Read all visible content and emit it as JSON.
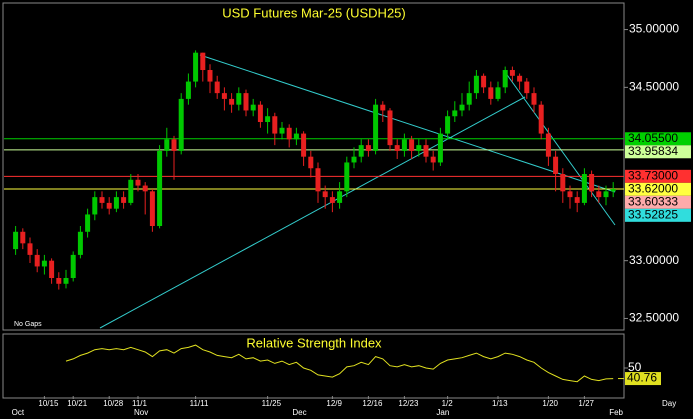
{
  "chart_data": [
    {
      "type": "candlestick",
      "title": "USD Futures Mar-25 (USDH25)",
      "annotation": "No Gaps",
      "x_unit": "Day",
      "categories": [
        null,
        null,
        null,
        null,
        "10/15",
        null,
        null,
        null,
        "10/21",
        null,
        null,
        null,
        null,
        "10/28",
        null,
        null,
        null,
        "11/1",
        null,
        null,
        null,
        null,
        null,
        null,
        null,
        "11/11",
        null,
        null,
        null,
        null,
        null,
        null,
        null,
        null,
        null,
        "11/25",
        null,
        null,
        null,
        null,
        null,
        null,
        null,
        null,
        "12/9",
        null,
        null,
        null,
        null,
        "12/16",
        null,
        null,
        null,
        null,
        "12/23",
        null,
        null,
        null,
        null,
        null,
        "1/2",
        null,
        null,
        null,
        null,
        null,
        null,
        "1/13",
        null,
        null,
        null,
        null,
        null,
        null,
        "1/20",
        null,
        null,
        null,
        null,
        "1/27",
        null,
        null,
        null,
        null
      ],
      "months": [
        "Oct",
        null,
        null,
        null,
        null,
        null,
        null,
        null,
        null,
        null,
        null,
        null,
        null,
        null,
        null,
        null,
        null,
        "Nov",
        null,
        null,
        null,
        null,
        null,
        null,
        null,
        null,
        null,
        null,
        null,
        null,
        null,
        null,
        null,
        null,
        null,
        null,
        null,
        null,
        null,
        "Dec",
        null,
        null,
        null,
        null,
        null,
        null,
        null,
        null,
        null,
        null,
        null,
        null,
        null,
        null,
        null,
        null,
        null,
        null,
        null,
        "Jan",
        null,
        null,
        null,
        null,
        null,
        null,
        null,
        null,
        null,
        null,
        null,
        null,
        null,
        null,
        null,
        null,
        null,
        null,
        null,
        null,
        null,
        null,
        null,
        "Feb"
      ],
      "open": [
        33.1,
        33.25,
        33.15,
        33.05,
        32.95,
        33.0,
        32.85,
        32.8,
        32.85,
        33.05,
        33.25,
        33.4,
        33.55,
        33.5,
        33.45,
        33.55,
        33.5,
        33.7,
        33.65,
        33.6,
        33.3,
        33.95,
        34.05,
        33.95,
        34.4,
        34.55,
        34.8,
        34.65,
        34.55,
        34.45,
        34.4,
        34.35,
        34.45,
        34.3,
        34.35,
        34.2,
        34.25,
        34.1,
        34.15,
        34.05,
        34.1,
        33.9,
        33.8,
        33.6,
        33.55,
        33.5,
        33.6,
        33.85,
        33.9,
        34.0,
        33.95,
        34.35,
        34.3,
        34.0,
        33.95,
        34.05,
        33.95,
        34.0,
        33.9,
        33.85,
        34.1,
        34.25,
        34.3,
        34.35,
        34.45,
        34.6,
        34.5,
        34.4,
        34.5,
        34.65,
        34.6,
        34.55,
        34.45,
        34.35,
        34.1,
        33.9,
        33.75,
        33.6,
        33.55,
        33.5,
        33.75,
        33.6,
        33.55,
        33.6
      ],
      "high": [
        33.3,
        33.28,
        33.2,
        33.1,
        33.05,
        33.02,
        32.9,
        32.92,
        33.08,
        33.3,
        33.45,
        33.6,
        33.6,
        33.55,
        33.6,
        33.6,
        33.75,
        33.75,
        33.68,
        33.62,
        34.0,
        34.15,
        34.08,
        34.45,
        34.62,
        34.82,
        34.8,
        34.7,
        34.6,
        34.5,
        34.45,
        34.5,
        34.48,
        34.4,
        34.38,
        34.32,
        34.28,
        34.2,
        34.18,
        34.15,
        34.12,
        33.95,
        33.85,
        33.65,
        33.6,
        33.68,
        33.9,
        33.98,
        34.05,
        34.05,
        34.4,
        34.38,
        34.32,
        34.05,
        34.1,
        34.08,
        34.05,
        34.05,
        33.95,
        34.15,
        34.3,
        34.38,
        34.45,
        34.55,
        34.65,
        34.62,
        34.55,
        34.55,
        34.68,
        34.68,
        34.62,
        34.58,
        34.5,
        34.38,
        34.15,
        33.95,
        33.8,
        33.65,
        33.6,
        33.8,
        33.78,
        33.65,
        33.65,
        33.68
      ],
      "low": [
        33.05,
        33.1,
        32.98,
        32.9,
        32.88,
        32.8,
        32.75,
        32.76,
        32.82,
        33.02,
        33.2,
        33.35,
        33.45,
        33.4,
        33.42,
        33.45,
        33.48,
        33.6,
        33.4,
        33.25,
        33.28,
        33.9,
        33.7,
        33.92,
        34.35,
        34.5,
        34.55,
        34.45,
        34.4,
        34.3,
        34.28,
        34.3,
        34.25,
        34.25,
        34.15,
        34.1,
        34.0,
        34.05,
        33.98,
        34.0,
        33.82,
        33.72,
        33.5,
        33.45,
        33.42,
        33.45,
        33.55,
        33.8,
        33.85,
        33.9,
        33.92,
        34.2,
        33.95,
        33.88,
        33.9,
        33.88,
        33.9,
        33.85,
        33.78,
        33.82,
        34.05,
        34.2,
        34.25,
        34.3,
        34.4,
        34.45,
        34.35,
        34.38,
        34.45,
        34.55,
        34.48,
        34.4,
        34.28,
        34.05,
        33.82,
        33.6,
        33.5,
        33.45,
        33.42,
        33.48,
        33.55,
        33.5,
        33.48,
        33.55
      ],
      "close": [
        33.25,
        33.15,
        33.05,
        32.95,
        33.0,
        32.85,
        32.8,
        32.85,
        33.05,
        33.25,
        33.4,
        33.55,
        33.5,
        33.45,
        33.55,
        33.5,
        33.7,
        33.65,
        33.6,
        33.3,
        33.95,
        34.05,
        33.95,
        34.4,
        34.55,
        34.8,
        34.65,
        34.55,
        34.45,
        34.4,
        34.35,
        34.45,
        34.3,
        34.35,
        34.2,
        34.25,
        34.1,
        34.15,
        34.05,
        34.1,
        33.9,
        33.8,
        33.6,
        33.55,
        33.5,
        33.6,
        33.85,
        33.9,
        34.0,
        33.95,
        34.35,
        34.3,
        34.0,
        33.95,
        34.05,
        33.95,
        34.0,
        33.9,
        33.85,
        34.1,
        34.25,
        34.3,
        34.35,
        34.45,
        34.6,
        34.5,
        34.4,
        34.5,
        34.65,
        34.6,
        34.55,
        34.45,
        34.35,
        34.1,
        33.9,
        33.75,
        33.6,
        33.55,
        33.5,
        33.75,
        33.6,
        33.55,
        33.6,
        33.62
      ],
      "up_color": "#00c800",
      "down_color": "#e82020",
      "ylim": [
        32.4,
        35.23
      ],
      "yticks": [
        {
          "value": 35,
          "label": "35.00000"
        },
        {
          "value": 34.5,
          "label": "34.50000"
        },
        {
          "value": 33,
          "label": "33.00000"
        },
        {
          "value": 32.5,
          "label": "32.50000"
        }
      ],
      "levels": [
        {
          "value": 34.055,
          "label": "34.05500",
          "color": "#00d000",
          "line": true
        },
        {
          "value": 33.95834,
          "label": "33.95834",
          "color": "#ccff99",
          "line": true
        },
        {
          "value": 33.73,
          "label": "33.73000",
          "color": "#ff3030",
          "line": true
        },
        {
          "value": 33.62,
          "label": "33.62000",
          "color": "#ffff40",
          "line": true
        },
        {
          "value": 33.60333,
          "label": "33.60333",
          "color": "#ffaaaa",
          "line": false
        },
        {
          "value": 33.52825,
          "label": "33.52825",
          "color": "#30dddd",
          "line": false
        }
      ]
    },
    {
      "type": "line",
      "title": "Relative Strength Index",
      "color": "#e0e020",
      "ylim": [
        25.5,
        78
      ],
      "yticks": [
        50
      ],
      "values": [
        null,
        null,
        null,
        null,
        null,
        null,
        null,
        56,
        58,
        61,
        63,
        66,
        67,
        66,
        67,
        66,
        68,
        66,
        64,
        60,
        65,
        66,
        63,
        67,
        68,
        70,
        66,
        64,
        61,
        60,
        59,
        62,
        58,
        59,
        56,
        57,
        54,
        56,
        53,
        55,
        50,
        48,
        44,
        43,
        42,
        45,
        51,
        52,
        55,
        53,
        60,
        58,
        52,
        51,
        53,
        51,
        52,
        50,
        49,
        54,
        57,
        58,
        59,
        61,
        63,
        60,
        58,
        60,
        63,
        62,
        60,
        57,
        55,
        50,
        46,
        43,
        40,
        39,
        38,
        43,
        40,
        39,
        40.5,
        40.76
      ]
    }
  ]
}
